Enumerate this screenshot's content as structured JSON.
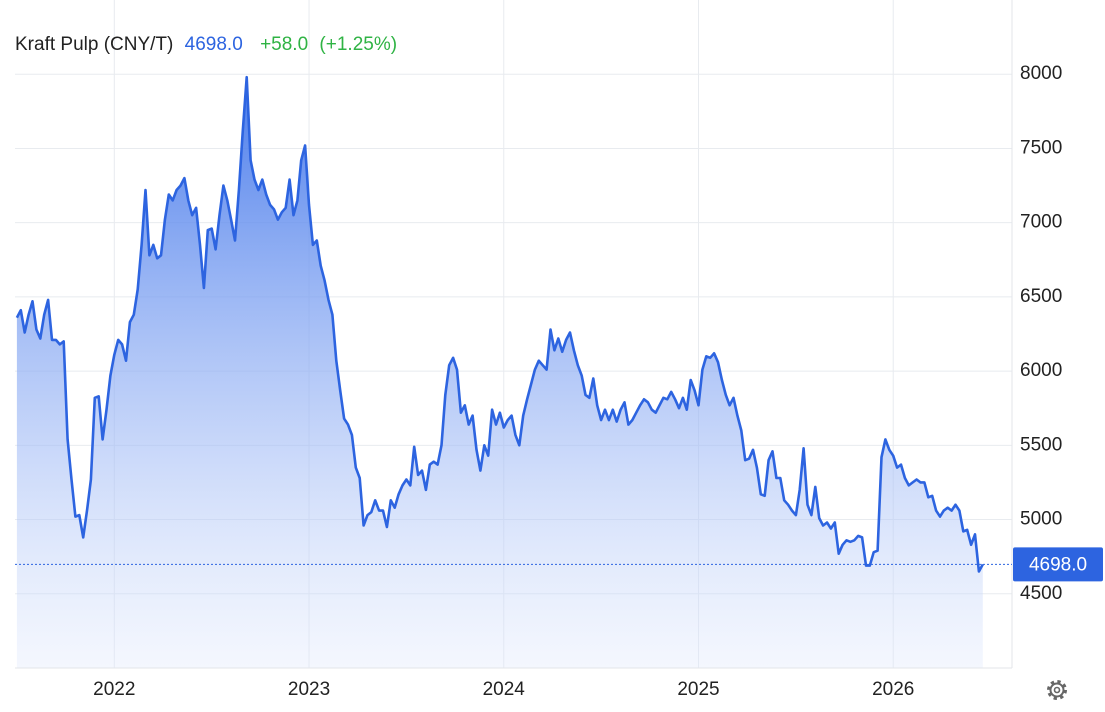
{
  "chart_data": {
    "type": "area",
    "title": "Kraft Pulp (CNY/T)",
    "last": {
      "value": 4698,
      "label": "4698.0"
    },
    "change": {
      "value": 58,
      "label": "+58.0"
    },
    "change_percent": {
      "value": 1.25,
      "label": "(+1.25%)"
    },
    "color": "#2d64e0",
    "change_color": "#2fb344",
    "xlim": [
      2021.49,
      2026.61
    ],
    "xticks": [
      2022,
      2023,
      2024,
      2025,
      2026
    ],
    "ylim": [
      4000,
      8500
    ],
    "yticks": [
      4500,
      5000,
      5500,
      6000,
      6500,
      7000,
      7500,
      8000
    ],
    "grid": true,
    "x": [
      2021.5,
      2021.52,
      2021.54,
      2021.56,
      2021.58,
      2021.6,
      2021.62,
      2021.64,
      2021.66,
      2021.68,
      2021.7,
      2021.72,
      2021.74,
      2021.76,
      2021.78,
      2021.8,
      2021.82,
      2021.84,
      2021.86,
      2021.88,
      2021.9,
      2021.92,
      2021.94,
      2021.96,
      2021.98,
      2022,
      2022.02,
      2022.04,
      2022.06,
      2022.08,
      2022.1,
      2022.12,
      2022.14,
      2022.16,
      2022.18,
      2022.2,
      2022.22,
      2022.24,
      2022.26,
      2022.28,
      2022.3,
      2022.32,
      2022.34,
      2022.36,
      2022.38,
      2022.4,
      2022.42,
      2022.44,
      2022.46,
      2022.48,
      2022.5,
      2022.52,
      2022.54,
      2022.56,
      2022.58,
      2022.6,
      2022.62,
      2022.64,
      2022.66,
      2022.68,
      2022.7,
      2022.72,
      2022.74,
      2022.76,
      2022.78,
      2022.8,
      2022.82,
      2022.84,
      2022.86,
      2022.88,
      2022.9,
      2022.92,
      2022.94,
      2022.96,
      2022.98,
      2023,
      2023.02,
      2023.04,
      2023.06,
      2023.08,
      2023.1,
      2023.12,
      2023.14,
      2023.16,
      2023.18,
      2023.2,
      2023.22,
      2023.24,
      2023.26,
      2023.28,
      2023.3,
      2023.32,
      2023.34,
      2023.36,
      2023.38,
      2023.4,
      2023.42,
      2023.44,
      2023.46,
      2023.48,
      2023.5,
      2023.52,
      2023.54,
      2023.56,
      2023.58,
      2023.6,
      2023.62,
      2023.64,
      2023.66,
      2023.68,
      2023.7,
      2023.72,
      2023.74,
      2023.76,
      2023.78,
      2023.8,
      2023.82,
      2023.84,
      2023.86,
      2023.88,
      2023.9,
      2023.92,
      2023.94,
      2023.96,
      2023.98,
      2024,
      2024.02,
      2024.04,
      2024.06,
      2024.08,
      2024.1,
      2024.12,
      2024.14,
      2024.16,
      2024.18,
      2024.2,
      2024.22,
      2024.24,
      2024.26,
      2024.28,
      2024.3,
      2024.32,
      2024.34,
      2024.36,
      2024.38,
      2024.4,
      2024.42,
      2024.44,
      2024.46,
      2024.48,
      2024.5,
      2024.52,
      2024.54,
      2024.56,
      2024.58,
      2024.6,
      2024.62,
      2024.64,
      2024.66,
      2024.68,
      2024.7,
      2024.72,
      2024.74,
      2024.76,
      2024.78,
      2024.8,
      2024.82,
      2024.84,
      2024.86,
      2024.88,
      2024.9,
      2024.92,
      2024.94,
      2024.96,
      2024.98,
      2025,
      2025.02,
      2025.04,
      2025.06,
      2025.08,
      2025.1,
      2025.12,
      2025.14,
      2025.16,
      2025.18,
      2025.2,
      2025.22,
      2025.24,
      2025.26,
      2025.28,
      2025.3,
      2025.32,
      2025.34,
      2025.36,
      2025.38,
      2025.4,
      2025.42,
      2025.44,
      2025.46,
      2025.48,
      2025.5,
      2025.52,
      2025.54,
      2025.56,
      2025.58,
      2025.6,
      2025.62,
      2025.64,
      2025.66,
      2025.68,
      2025.7,
      2025.72,
      2025.74,
      2025.76,
      2025.78,
      2025.8,
      2025.82,
      2025.84,
      2025.86,
      2025.88,
      2025.9,
      2025.92,
      2025.94,
      2025.96,
      2025.98,
      2026,
      2026.02,
      2026.04,
      2026.06,
      2026.08,
      2026.1,
      2026.12,
      2026.14,
      2026.16,
      2026.18,
      2026.2,
      2026.22,
      2026.24,
      2026.26,
      2026.28,
      2026.3,
      2026.32,
      2026.34,
      2026.36,
      2026.38,
      2026.4,
      2026.42,
      2026.44,
      2026.46
    ],
    "values": [
      6360,
      6410,
      6260,
      6380,
      6470,
      6280,
      6220,
      6380,
      6480,
      6210,
      6210,
      6180,
      6200,
      5540,
      5270,
      5020,
      5030,
      4880,
      5060,
      5270,
      5820,
      5830,
      5540,
      5740,
      5970,
      6110,
      6210,
      6180,
      6070,
      6330,
      6380,
      6550,
      6850,
      7220,
      6780,
      6850,
      6760,
      6780,
      7020,
      7190,
      7150,
      7220,
      7250,
      7300,
      7150,
      7050,
      7100,
      6850,
      6560,
      6950,
      6960,
      6820,
      7050,
      7250,
      7150,
      7020,
      6880,
      7220,
      7620,
      7980,
      7420,
      7290,
      7220,
      7290,
      7190,
      7120,
      7090,
      7020,
      7070,
      7100,
      7290,
      7050,
      7150,
      7420,
      7520,
      7120,
      6850,
      6880,
      6710,
      6610,
      6480,
      6380,
      6070,
      5870,
      5680,
      5640,
      5570,
      5350,
      5280,
      4960,
      5030,
      5050,
      5130,
      5060,
      5060,
      4950,
      5130,
      5080,
      5170,
      5230,
      5270,
      5230,
      5490,
      5300,
      5330,
      5200,
      5370,
      5390,
      5370,
      5500,
      5840,
      6040,
      6090,
      6010,
      5720,
      5770,
      5640,
      5700,
      5470,
      5330,
      5500,
      5430,
      5740,
      5640,
      5720,
      5620,
      5670,
      5700,
      5570,
      5500,
      5700,
      5810,
      5910,
      6010,
      6070,
      6040,
      6010,
      6280,
      6140,
      6220,
      6130,
      6210,
      6260,
      6140,
      6040,
      5970,
      5840,
      5820,
      5950,
      5770,
      5670,
      5740,
      5670,
      5740,
      5660,
      5740,
      5790,
      5640,
      5670,
      5720,
      5770,
      5810,
      5790,
      5740,
      5720,
      5770,
      5820,
      5810,
      5860,
      5810,
      5750,
      5820,
      5740,
      5940,
      5870,
      5770,
      6010,
      6100,
      6090,
      6120,
      6060,
      5940,
      5840,
      5770,
      5820,
      5700,
      5600,
      5400,
      5410,
      5470,
      5350,
      5170,
      5160,
      5400,
      5460,
      5280,
      5280,
      5130,
      5100,
      5060,
      5030,
      5200,
      5480,
      5100,
      5030,
      5220,
      5010,
      4960,
      4980,
      4940,
      4980,
      4770,
      4830,
      4860,
      4850,
      4860,
      4890,
      4880,
      4690,
      4690,
      4780,
      4790,
      5420,
      5540,
      5470,
      5430,
      5350,
      5370,
      5280,
      5230,
      5250,
      5270,
      5250,
      5250,
      5150,
      5160,
      5060,
      5020,
      5060,
      5080,
      5060,
      5100,
      5060,
      4920,
      4930,
      4830,
      4900,
      4650,
      4698
    ]
  }
}
